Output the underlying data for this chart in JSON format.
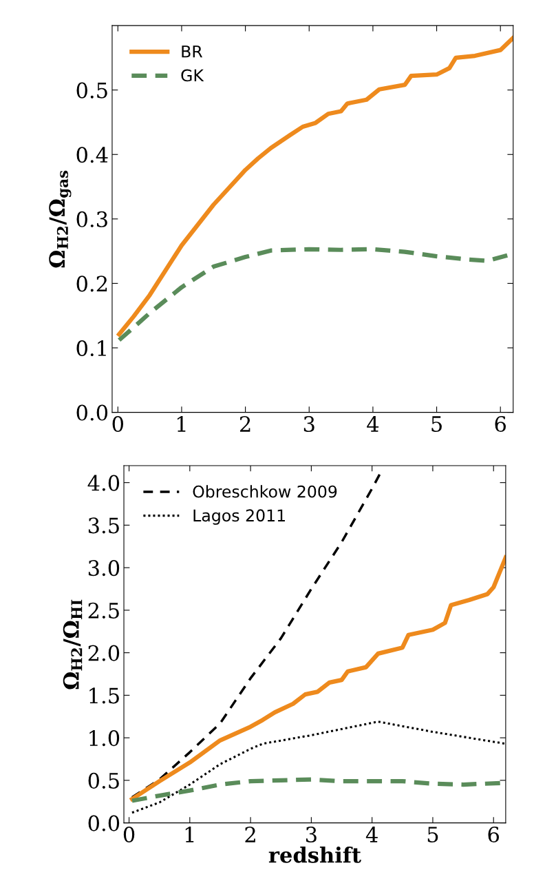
{
  "chart_data": [
    {
      "type": "line",
      "ylabel": "Ω$_{H2}$/Ω$_{gas}$",
      "xlim": [
        -0.09,
        6.2
      ],
      "ylim": [
        0,
        0.6
      ],
      "xticks": [
        0,
        1,
        2,
        3,
        4,
        5,
        6
      ],
      "yticks": [
        {
          "value": 0,
          "label": "0.0"
        },
        0.1,
        0.2,
        0.3,
        0.4,
        0.5
      ],
      "grid": false,
      "legend": "top left",
      "series": [
        {
          "name": "BR",
          "color": "#ee8a1d",
          "line_style": "solid",
          "x": [
            0.02,
            0.25,
            0.5,
            1.0,
            1.5,
            2.0,
            2.2,
            2.4,
            2.7,
            2.9,
            3.1,
            3.3,
            3.5,
            3.6,
            3.9,
            4.1,
            4.5,
            4.6,
            5.0,
            5.2,
            5.3,
            5.6,
            6.0,
            6.2
          ],
          "values": [
            0.121,
            0.149,
            0.182,
            0.259,
            0.322,
            0.376,
            0.394,
            0.41,
            0.43,
            0.443,
            0.449,
            0.463,
            0.467,
            0.479,
            0.485,
            0.501,
            0.508,
            0.522,
            0.524,
            0.534,
            0.55,
            0.553,
            0.562,
            0.581
          ]
        },
        {
          "name": "GK",
          "color": "#5a8c5a",
          "line_style": "dashed",
          "x": [
            0.02,
            0.25,
            0.5,
            1.0,
            1.5,
            2.0,
            2.4,
            3.0,
            3.5,
            4.0,
            4.5,
            5.0,
            5.5,
            5.8,
            6.2
          ],
          "values": [
            0.112,
            0.132,
            0.154,
            0.194,
            0.226,
            0.241,
            0.251,
            0.253,
            0.252,
            0.253,
            0.249,
            0.242,
            0.237,
            0.235,
            0.246
          ]
        }
      ]
    },
    {
      "type": "line",
      "xlabel": "redshift",
      "ylabel": "Ω$_{H2}$/Ω$_{HI}$",
      "xlim": [
        -0.085,
        6.2
      ],
      "ylim": [
        0,
        4.2
      ],
      "xticks": [
        0,
        1,
        2,
        3,
        4,
        5,
        6
      ],
      "yticks": [
        {
          "value": 0,
          "label": "0.0"
        },
        0.5,
        {
          "value": 1,
          "label": "1.0"
        },
        1.5,
        {
          "value": 2,
          "label": "2.0"
        },
        2.5,
        {
          "value": 3,
          "label": "3.0"
        },
        3.5,
        {
          "value": 4,
          "label": "4.0"
        }
      ],
      "grid": false,
      "legend": "top left",
      "series": [
        {
          "name": "Obreschkow 2009",
          "color": "#000000",
          "line_style": "dashed",
          "x": [
            0.05,
            0.5,
            1.0,
            1.5,
            2.0,
            2.5,
            3.0,
            3.5,
            4.0,
            4.15
          ],
          "values": [
            0.3,
            0.51,
            0.83,
            1.17,
            1.7,
            2.17,
            2.75,
            3.3,
            3.93,
            4.13
          ]
        },
        {
          "name": "Lagos 2011",
          "color": "#000000",
          "line_style": "dotted",
          "x": [
            0.05,
            0.5,
            1.0,
            1.5,
            2.0,
            2.2,
            3.0,
            4.1,
            5.0,
            6.2
          ],
          "values": [
            0.12,
            0.24,
            0.45,
            0.69,
            0.87,
            0.93,
            1.03,
            1.19,
            1.07,
            0.93
          ]
        },
        {
          "color": "#ee8a1d",
          "line_style": "solid",
          "x": [
            0.05,
            0.5,
            1.0,
            1.5,
            2.0,
            2.2,
            2.4,
            2.7,
            2.9,
            3.1,
            3.3,
            3.5,
            3.6,
            3.9,
            4.1,
            4.5,
            4.6,
            5.0,
            5.2,
            5.3,
            5.6,
            5.9,
            6.0,
            6.2
          ],
          "values": [
            0.28,
            0.49,
            0.71,
            0.97,
            1.13,
            1.21,
            1.3,
            1.4,
            1.51,
            1.54,
            1.65,
            1.68,
            1.78,
            1.83,
            1.99,
            2.06,
            2.21,
            2.27,
            2.35,
            2.56,
            2.62,
            2.69,
            2.77,
            3.12
          ]
        },
        {
          "color": "#5a8c5a",
          "line_style": "dashed",
          "x": [
            0.05,
            0.5,
            1.0,
            1.5,
            2.0,
            2.5,
            3.0,
            3.5,
            4.0,
            4.5,
            5.0,
            5.5,
            6.2
          ],
          "values": [
            0.26,
            0.32,
            0.38,
            0.45,
            0.49,
            0.5,
            0.51,
            0.49,
            0.49,
            0.49,
            0.46,
            0.45,
            0.47
          ]
        }
      ]
    }
  ]
}
